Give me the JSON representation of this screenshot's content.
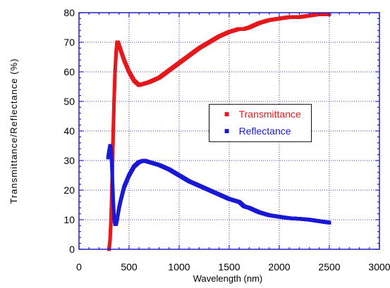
{
  "chart_data": {
    "type": "scatter",
    "title": "",
    "xlabel": "Wavelength (nm)",
    "ylabel": "Transmittance/Reflectance (%)",
    "xlim": [
      0,
      3000
    ],
    "ylim": [
      0,
      80
    ],
    "xticks": [
      0,
      500,
      1000,
      1500,
      2000,
      2500,
      3000
    ],
    "yticks": [
      0,
      10,
      20,
      30,
      40,
      50,
      60,
      70,
      80
    ],
    "grid": true,
    "legend_position": "center-right",
    "series": [
      {
        "name": "Transmittance",
        "color": "#e41a1c",
        "x": [
          300,
          310,
          320,
          330,
          340,
          350,
          360,
          370,
          380,
          390,
          400,
          420,
          450,
          500,
          550,
          600,
          650,
          700,
          800,
          900,
          1000,
          1100,
          1200,
          1300,
          1400,
          1500,
          1600,
          1650,
          1700,
          1800,
          1900,
          2000,
          2100,
          2200,
          2300,
          2400,
          2500
        ],
        "y": [
          0,
          3,
          10,
          22,
          37,
          50,
          60,
          66,
          70,
          70,
          69,
          67,
          64,
          60,
          57,
          55.5,
          56,
          56.5,
          58,
          60.5,
          63,
          65.5,
          68,
          70,
          72,
          73.5,
          74.5,
          74.5,
          75,
          76.5,
          77.5,
          78,
          78.5,
          78.5,
          79,
          79.5,
          79.5
        ]
      },
      {
        "name": "Reflectance",
        "color": "#1a1ad4",
        "x": [
          290,
          300,
          310,
          320,
          330,
          340,
          350,
          360,
          370,
          380,
          390,
          400,
          420,
          450,
          500,
          550,
          600,
          650,
          700,
          800,
          900,
          1000,
          1100,
          1200,
          1300,
          1400,
          1500,
          1600,
          1650,
          1700,
          1800,
          1900,
          2000,
          2100,
          2200,
          2300,
          2400,
          2500
        ],
        "y": [
          31,
          33,
          35,
          34,
          27,
          18,
          11,
          8.5,
          8.5,
          10,
          12,
          14,
          17,
          21,
          25,
          28,
          29.5,
          30,
          29.5,
          28.5,
          27,
          25,
          23,
          21.5,
          20,
          18.5,
          17,
          16,
          14.5,
          14,
          12.5,
          11.5,
          11,
          10.5,
          10.3,
          10,
          9.5,
          9
        ]
      }
    ]
  }
}
